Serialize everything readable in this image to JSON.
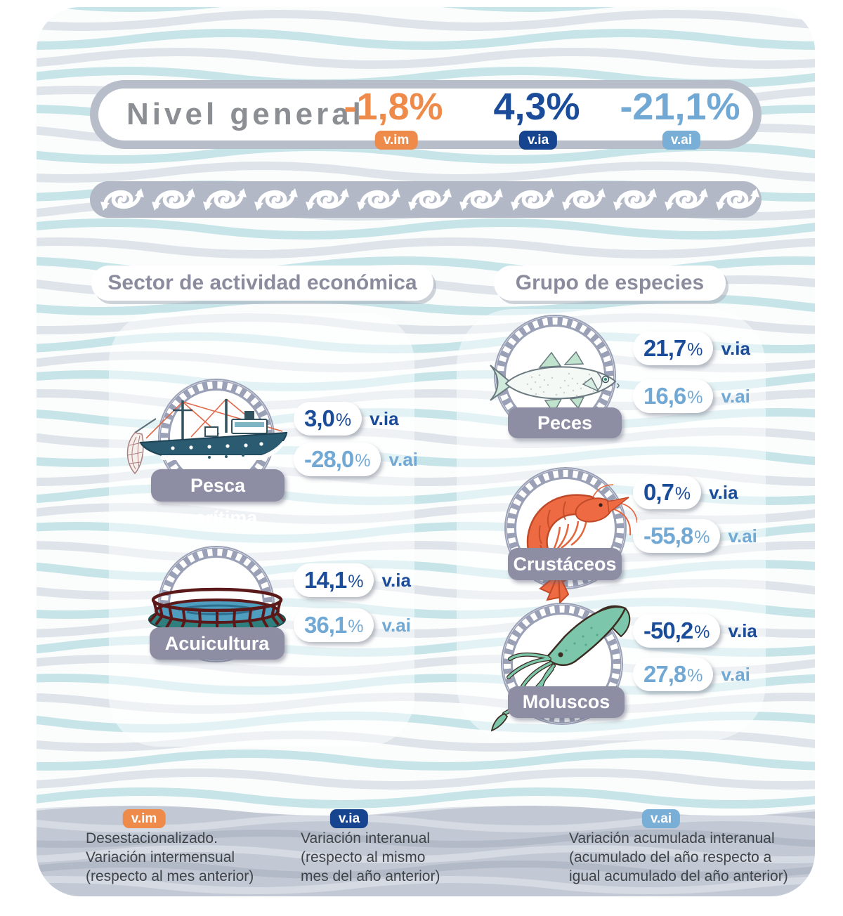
{
  "chart_data": {
    "type": "table",
    "title": "Nivel general",
    "overall": {
      "v.im": -1.8,
      "v.ia": 4.3,
      "v.ai": -21.1
    },
    "groups": [
      {
        "name": "Sector de actividad económica",
        "rows": [
          {
            "category": "Pesca marítima",
            "v.ia": 3.0,
            "v.ai": -28.0
          },
          {
            "category": "Acuicultura",
            "v.ia": 14.1,
            "v.ai": 36.1
          }
        ]
      },
      {
        "name": "Grupo de especies",
        "rows": [
          {
            "category": "Peces",
            "v.ia": 21.7,
            "v.ai": 16.6
          },
          {
            "category": "Crustáceos",
            "v.ia": 0.7,
            "v.ai": -55.8
          },
          {
            "category": "Moluscos",
            "v.ia": -50.2,
            "v.ai": 27.8
          }
        ]
      }
    ],
    "legend": {
      "v.im": "Desestacionalizado. Variación intermensual (respecto al mes anterior)",
      "v.ia": "Variación interanual (respecto al mismo mes del año anterior)",
      "v.ai": "Variación acumulada interanual (acumulado del año respecto a igual acumulado del año anterior)"
    }
  },
  "header": {
    "title": "Nivel general",
    "metrics": [
      {
        "value": "-1,8%",
        "tag": "v.im"
      },
      {
        "value": "4,3%",
        "tag": "v.ia"
      },
      {
        "value": "-21,1%",
        "tag": "v.ai"
      }
    ]
  },
  "sections": [
    {
      "title": "Sector de actividad económica",
      "items": [
        {
          "label": "Pesca marítima",
          "icon": "fishing-boat-icon",
          "metrics": [
            {
              "num": "3,0",
              "pct": "%",
              "tag": "v.ia"
            },
            {
              "num": "-28,0",
              "pct": "%",
              "tag": "v.ai"
            }
          ]
        },
        {
          "label": "Acuicultura",
          "icon": "aquaculture-cage-icon",
          "metrics": [
            {
              "num": "14,1",
              "pct": "%",
              "tag": "v.ia"
            },
            {
              "num": "36,1",
              "pct": "%",
              "tag": "v.ai"
            }
          ]
        }
      ]
    },
    {
      "title": "Grupo de especies",
      "items": [
        {
          "label": "Peces",
          "icon": "fish-icon",
          "metrics": [
            {
              "num": "21,7",
              "pct": "%",
              "tag": "v.ia"
            },
            {
              "num": "16,6",
              "pct": "%",
              "tag": "v.ai"
            }
          ]
        },
        {
          "label": "Crustáceos",
          "icon": "shrimp-icon",
          "metrics": [
            {
              "num": "0,7",
              "pct": "%",
              "tag": "v.ia"
            },
            {
              "num": "-55,8",
              "pct": "%",
              "tag": "v.ai"
            }
          ]
        },
        {
          "label": "Moluscos",
          "icon": "squid-icon",
          "metrics": [
            {
              "num": "-50,2",
              "pct": "%",
              "tag": "v.ia"
            },
            {
              "num": "27,8",
              "pct": "%",
              "tag": "v.ai"
            }
          ]
        }
      ]
    }
  ],
  "legend": [
    {
      "tag": "v.im",
      "lines": [
        "Desestacionalizado.",
        "Variación intermensual",
        "(respecto al mes anterior)"
      ]
    },
    {
      "tag": "v.ia",
      "lines": [
        "Variación interanual",
        "(respecto al mismo",
        "mes del año anterior)"
      ]
    },
    {
      "tag": "v.ai",
      "lines": [
        "Variación acumulada interanual",
        "(acumulado del año respecto a",
        "igual acumulado del año anterior)"
      ]
    }
  ],
  "colors": {
    "vim_orange": "#ef8b4a",
    "via_dark_blue": "#1b4c99",
    "vai_light_blue": "#72a9d4",
    "label_gray": "#8d8da4",
    "footer_gray": "#c3c9d4",
    "title_gray": "#8b8e93"
  }
}
